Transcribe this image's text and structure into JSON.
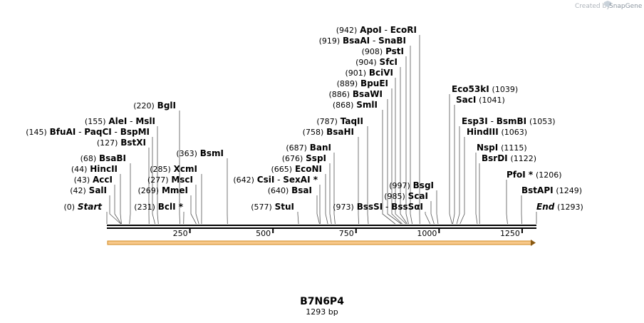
{
  "credit": {
    "prefix": "Created by",
    "brand": "SnapGene"
  },
  "sequence": {
    "name": "B7N6P4",
    "length_label": "1293 bp",
    "length": 1293
  },
  "axis": {
    "ticks": [
      250,
      500,
      750,
      1000,
      1250
    ]
  },
  "colors": {
    "feature_fill": "#f7c88a",
    "feature_stroke": "#d08a22",
    "line": "#000000",
    "leader": "#555555"
  },
  "groups": [
    {
      "sites": [
        {
          "num": "(0)",
          "name": "Start",
          "pos": 0,
          "italic": true
        }
      ]
    },
    {
      "sites": [
        {
          "num": "(42)",
          "name": "SalI",
          "pos": 42
        }
      ]
    },
    {
      "sites": [
        {
          "num": "(43)",
          "name": "AccI",
          "pos": 43
        }
      ]
    },
    {
      "sites": [
        {
          "num": "(44)",
          "name": "HincII",
          "pos": 44
        }
      ]
    },
    {
      "sites": [
        {
          "num": "(68)",
          "name": "BsaBI",
          "pos": 68
        }
      ]
    },
    {
      "sites": [
        {
          "num": "(127)",
          "name": "BstXI",
          "pos": 127
        }
      ]
    },
    {
      "sites": [
        {
          "num": "(145)",
          "name": "BfuAI",
          "pos": 145
        },
        {
          "name": "PaqCI",
          "pos": 145
        },
        {
          "name": "BspMI",
          "pos": 145
        }
      ]
    },
    {
      "sites": [
        {
          "num": "(155)",
          "name": "AleI",
          "pos": 155
        },
        {
          "name": "MslI",
          "pos": 155
        }
      ]
    },
    {
      "sites": [
        {
          "num": "(220)",
          "name": "BglI",
          "pos": 220
        }
      ]
    },
    {
      "sites": [
        {
          "num": "(231)",
          "name": "BclI *",
          "pos": 231
        }
      ]
    },
    {
      "sites": [
        {
          "num": "(269)",
          "name": "MmeI",
          "pos": 269
        }
      ]
    },
    {
      "sites": [
        {
          "num": "(277)",
          "name": "MscI",
          "pos": 277
        }
      ]
    },
    {
      "sites": [
        {
          "num": "(285)",
          "name": "XcmI",
          "pos": 285
        }
      ]
    },
    {
      "sites": [
        {
          "num": "(363)",
          "name": "BsmI",
          "pos": 363
        }
      ]
    },
    {
      "sites": [
        {
          "num": "(577)",
          "name": "StuI",
          "pos": 577
        }
      ]
    },
    {
      "sites": [
        {
          "num": "(640)",
          "name": "BsaI",
          "pos": 640
        }
      ]
    },
    {
      "sites": [
        {
          "num": "(642)",
          "name": "CsiI",
          "pos": 642
        },
        {
          "name": "SexAI *",
          "pos": 642
        }
      ]
    },
    {
      "sites": [
        {
          "num": "(665)",
          "name": "EcoNI",
          "pos": 665
        }
      ]
    },
    {
      "sites": [
        {
          "num": "(676)",
          "name": "SspI",
          "pos": 676
        }
      ]
    },
    {
      "sites": [
        {
          "num": "(687)",
          "name": "BanI",
          "pos": 687
        }
      ]
    },
    {
      "sites": [
        {
          "num": "(758)",
          "name": "BsaHI",
          "pos": 758
        }
      ]
    },
    {
      "sites": [
        {
          "num": "(787)",
          "name": "TaqII",
          "pos": 787
        }
      ]
    },
    {
      "sites": [
        {
          "num": "(868)",
          "name": "SmlI",
          "pos": 868
        }
      ]
    },
    {
      "sites": [
        {
          "num": "(886)",
          "name": "BsaWI",
          "pos": 886
        }
      ]
    },
    {
      "sites": [
        {
          "num": "(889)",
          "name": "BpuEI",
          "pos": 889
        }
      ]
    },
    {
      "sites": [
        {
          "num": "(901)",
          "name": "BciVI",
          "pos": 901
        }
      ]
    },
    {
      "sites": [
        {
          "num": "(904)",
          "name": "SfcI",
          "pos": 904
        }
      ]
    },
    {
      "sites": [
        {
          "num": "(908)",
          "name": "PstI",
          "pos": 908
        }
      ]
    },
    {
      "sites": [
        {
          "num": "(919)",
          "name": "BsaAI",
          "pos": 919
        },
        {
          "name": "SnaBI",
          "pos": 919
        }
      ]
    },
    {
      "sites": [
        {
          "num": "(942)",
          "name": "ApoI",
          "pos": 942
        },
        {
          "name": "EcoRI",
          "pos": 942
        }
      ]
    },
    {
      "sites": [
        {
          "num": "(973)",
          "name": "BssSI",
          "pos": 973
        },
        {
          "name": "BssSαI",
          "pos": 973
        }
      ]
    },
    {
      "sites": [
        {
          "num": "(985)",
          "name": "ScaI",
          "pos": 985
        }
      ]
    },
    {
      "sites": [
        {
          "num": "(997)",
          "name": "BsgI",
          "pos": 997
        }
      ]
    },
    {
      "sites": [
        {
          "name": "Eco53kI",
          "num": "(1039)",
          "pos": 1039
        }
      ]
    },
    {
      "sites": [
        {
          "name": "SacI",
          "num": "(1041)",
          "pos": 1041
        }
      ]
    },
    {
      "sites": [
        {
          "name": "Esp3I",
          "pos": 1053
        },
        {
          "name": "BsmBI",
          "num": "(1053)",
          "pos": 1053
        }
      ]
    },
    {
      "sites": [
        {
          "name": "HindIII",
          "num": "(1063)",
          "pos": 1063
        }
      ]
    },
    {
      "sites": [
        {
          "name": "NspI",
          "num": "(1115)",
          "pos": 1115
        }
      ]
    },
    {
      "sites": [
        {
          "name": "BsrDI",
          "num": "(1122)",
          "pos": 1122
        }
      ]
    },
    {
      "sites": [
        {
          "name": "PfoI *",
          "num": "(1206)",
          "pos": 1206
        }
      ]
    },
    {
      "sites": [
        {
          "name": "BstAPI",
          "num": "(1249)",
          "pos": 1249
        }
      ]
    },
    {
      "sites": [
        {
          "name": "End",
          "num": "(1293)",
          "pos": 1293,
          "italic": true
        }
      ]
    }
  ]
}
